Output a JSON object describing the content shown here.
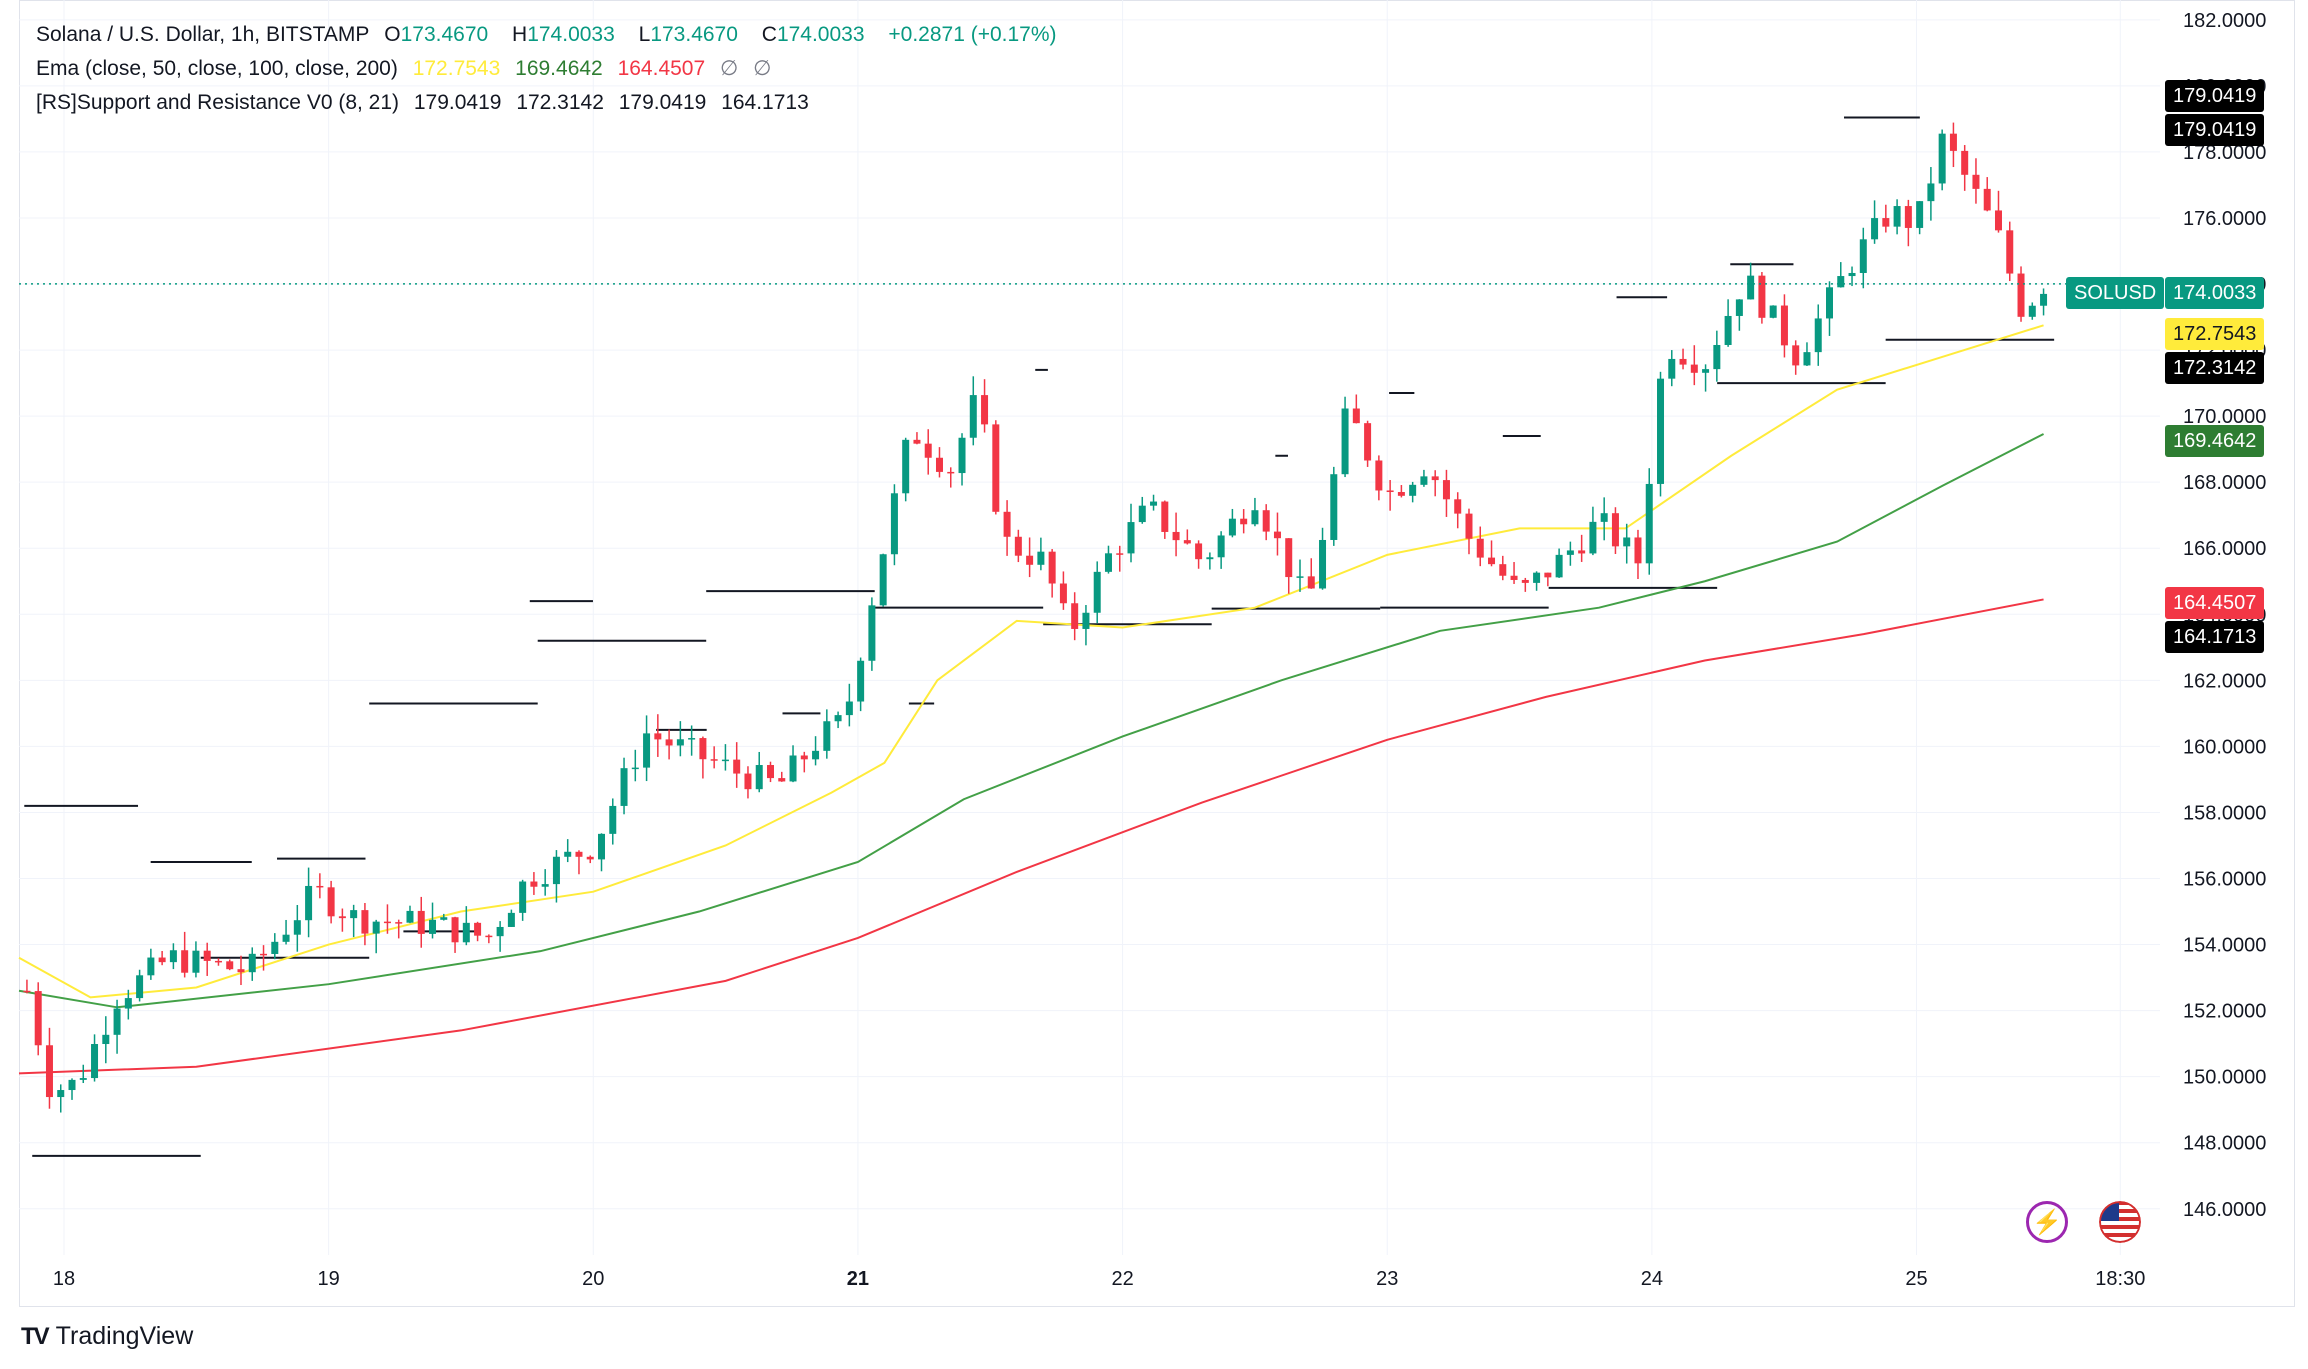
{
  "legend": {
    "symbol": "Solana / U.S. Dollar, 1h, BITSTAMP",
    "o_label": "O",
    "o_value": "173.4670",
    "h_label": "H",
    "h_value": "174.0033",
    "l_label": "L",
    "l_value": "173.4670",
    "c_label": "C",
    "c_value": "174.0033",
    "change": "+0.2871 (+0.17%)",
    "ema_title": "Ema (close, 50, close, 100, close, 200)",
    "ema_values": [
      "172.7543",
      "169.4642",
      "164.4507",
      "∅",
      "∅"
    ],
    "sr_title": "[RS]Support and Resistance V0 (8, 21)",
    "sr_values": [
      "179.0419",
      "172.3142",
      "179.0419",
      "164.1713"
    ]
  },
  "colors": {
    "up": "#089981",
    "down": "#f23645",
    "ema50": "#ffeb3b",
    "ema100": "#43a047",
    "ema200": "#f23645",
    "sr_line": "#131722",
    "support_fill": "#d9d7ae",
    "resistance_fill": "#ffd8bc",
    "grid": "#f0f3fa",
    "price_line": "#089981"
  },
  "axis_tags": [
    {
      "text": "179.0419",
      "bg": "#000000",
      "fg": "#ffffff"
    },
    {
      "text": "179.0419",
      "bg": "#000000",
      "fg": "#ffffff"
    },
    {
      "text": "174.0033",
      "bg": "#089981",
      "fg": "#ffffff",
      "symbol": "SOLUSD"
    },
    {
      "text": "172.7543",
      "bg": "#ffeb3b",
      "fg": "#131722"
    },
    {
      "text": "172.3142",
      "bg": "#000000",
      "fg": "#ffffff"
    },
    {
      "text": "169.4642",
      "bg": "#2e7d32",
      "fg": "#ffffff"
    },
    {
      "text": "164.4507",
      "bg": "#f23645",
      "fg": "#ffffff"
    },
    {
      "text": "164.1713",
      "bg": "#000000",
      "fg": "#ffffff"
    }
  ],
  "brand": "TradingView",
  "chart_data": {
    "type": "candlestick",
    "title": "Solana / U.S. Dollar, 1h, BITSTAMP",
    "interval": "1h",
    "y_ticks": [
      "146.0000",
      "148.0000",
      "150.0000",
      "152.0000",
      "154.0000",
      "156.0000",
      "158.0000",
      "160.0000",
      "162.0000",
      "164.0000",
      "166.0000",
      "168.0000",
      "170.0000",
      "172.0000",
      "174.0000",
      "176.0000",
      "178.0000",
      "180.0000",
      "182.0000"
    ],
    "y_range": [
      144.6,
      182.6
    ],
    "x_ticks": [
      {
        "label": "18",
        "day": 18,
        "bold": false
      },
      {
        "label": "19",
        "day": 19,
        "bold": false
      },
      {
        "label": "20",
        "day": 20,
        "bold": false
      },
      {
        "label": "21",
        "day": 21,
        "bold": true
      },
      {
        "label": "22",
        "day": 22,
        "bold": false
      },
      {
        "label": "23",
        "day": 23,
        "bold": false
      },
      {
        "label": "24",
        "day": 24,
        "bold": false
      },
      {
        "label": "25",
        "day": 25,
        "bold": false
      },
      {
        "label": "18:30",
        "day": 25.77,
        "bold": false
      }
    ],
    "x_range_days": [
      17.83,
      25.92
    ],
    "last_price": 174.0033,
    "series_key_points": {
      "close": [
        [
          17.86,
          152.6
        ],
        [
          17.95,
          149.6
        ],
        [
          18.05,
          149.8
        ],
        [
          18.2,
          152.4
        ],
        [
          18.4,
          153.6
        ],
        [
          18.7,
          153.2
        ],
        [
          18.95,
          155.6
        ],
        [
          19.1,
          154.8
        ],
        [
          19.4,
          154.6
        ],
        [
          19.6,
          154.2
        ],
        [
          19.75,
          156.0
        ],
        [
          20.0,
          157.0
        ],
        [
          20.2,
          160.4
        ],
        [
          20.55,
          159.2
        ],
        [
          20.7,
          158.8
        ],
        [
          20.85,
          160.2
        ],
        [
          20.95,
          160.8
        ],
        [
          21.05,
          164.4
        ],
        [
          21.2,
          169.6
        ],
        [
          21.35,
          168.4
        ],
        [
          21.45,
          170.6
        ],
        [
          21.55,
          166.2
        ],
        [
          21.7,
          165.6
        ],
        [
          21.8,
          163.4
        ],
        [
          21.95,
          165.8
        ],
        [
          22.1,
          167.2
        ],
        [
          22.3,
          165.6
        ],
        [
          22.5,
          167.6
        ],
        [
          22.7,
          164.2
        ],
        [
          22.85,
          170.2
        ],
        [
          23.0,
          167.6
        ],
        [
          23.15,
          168.6
        ],
        [
          23.3,
          166.4
        ],
        [
          23.5,
          164.6
        ],
        [
          23.65,
          165.6
        ],
        [
          23.8,
          166.8
        ],
        [
          23.95,
          165.6
        ],
        [
          24.05,
          172.2
        ],
        [
          24.2,
          171.6
        ],
        [
          24.35,
          174.2
        ],
        [
          24.55,
          171.8
        ],
        [
          24.75,
          174.6
        ],
        [
          24.9,
          176.2
        ],
        [
          25.0,
          175.8
        ],
        [
          25.1,
          178.4
        ],
        [
          25.2,
          177.0
        ],
        [
          25.3,
          175.6
        ],
        [
          25.4,
          173.2
        ],
        [
          25.48,
          174.0
        ]
      ],
      "ema50": [
        [
          17.83,
          153.6
        ],
        [
          18.1,
          152.4
        ],
        [
          18.5,
          152.7
        ],
        [
          19.0,
          154.0
        ],
        [
          19.5,
          155.0
        ],
        [
          20.0,
          155.6
        ],
        [
          20.5,
          157.0
        ],
        [
          20.9,
          158.6
        ],
        [
          21.1,
          159.5
        ],
        [
          21.3,
          162.0
        ],
        [
          21.6,
          163.8
        ],
        [
          22.0,
          163.6
        ],
        [
          22.5,
          164.2
        ],
        [
          23.0,
          165.8
        ],
        [
          23.5,
          166.6
        ],
        [
          23.9,
          166.6
        ],
        [
          24.3,
          168.8
        ],
        [
          24.7,
          170.8
        ],
        [
          25.1,
          171.8
        ],
        [
          25.48,
          172.75
        ]
      ],
      "ema100": [
        [
          17.83,
          152.6
        ],
        [
          18.2,
          152.1
        ],
        [
          19.0,
          152.8
        ],
        [
          19.8,
          153.8
        ],
        [
          20.4,
          155.0
        ],
        [
          21.0,
          156.5
        ],
        [
          21.4,
          158.4
        ],
        [
          22.0,
          160.3
        ],
        [
          22.6,
          162.0
        ],
        [
          23.2,
          163.5
        ],
        [
          23.8,
          164.2
        ],
        [
          24.2,
          165.0
        ],
        [
          24.7,
          166.2
        ],
        [
          25.1,
          167.9
        ],
        [
          25.48,
          169.46
        ]
      ],
      "ema200": [
        [
          17.83,
          150.1
        ],
        [
          18.5,
          150.3
        ],
        [
          19.5,
          151.4
        ],
        [
          20.5,
          152.9
        ],
        [
          21.0,
          154.2
        ],
        [
          21.6,
          156.2
        ],
        [
          22.3,
          158.3
        ],
        [
          23.0,
          160.2
        ],
        [
          23.6,
          161.5
        ],
        [
          24.2,
          162.6
        ],
        [
          24.8,
          163.4
        ],
        [
          25.48,
          164.45
        ]
      ]
    },
    "support_resistance": {
      "resistance_levels": [
        158.2,
        156.5,
        156.6,
        154.4,
        164.4,
        160.5,
        161.0,
        161.3,
        171.4,
        171.4,
        168.8,
        170.7,
        169.4,
        173.6,
        174.6,
        179.0419
      ],
      "support_levels": [
        147.6,
        153.6,
        161.3,
        163.2,
        164.7,
        164.2,
        163.7,
        164.1713,
        164.2,
        164.8,
        171.0,
        172.3142
      ]
    }
  }
}
